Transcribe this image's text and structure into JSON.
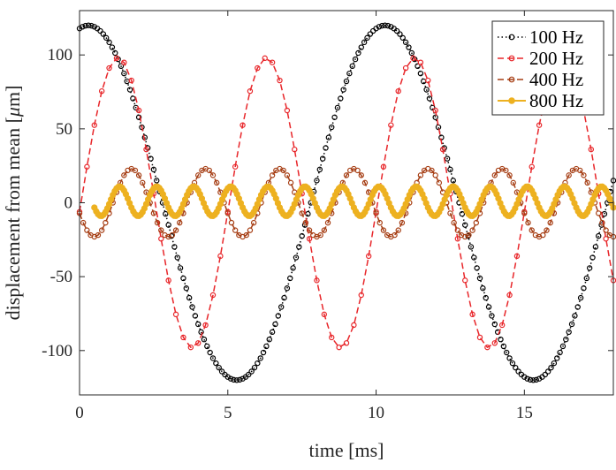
{
  "chart_data": {
    "type": "line",
    "title": "",
    "xlabel": "time [ms]",
    "ylabel_parts": [
      "displacement from mean [",
      "μ",
      "m]"
    ],
    "xlim": [
      0,
      18
    ],
    "ylim": [
      -130,
      130
    ],
    "x_ticks": [
      0,
      5,
      10,
      15
    ],
    "y_ticks": [
      -100,
      -50,
      0,
      50,
      100
    ],
    "x_tick_labels": [
      "0",
      "5",
      "10",
      "15"
    ],
    "y_tick_labels": [
      "-100",
      "-50",
      "0",
      "50",
      "100"
    ],
    "legend_position": "top-right",
    "grid": false,
    "series": [
      {
        "name": "100 Hz",
        "color": "#000000",
        "line_style": "dotted",
        "marker": "open-circle",
        "amplitude": 120,
        "frequency_hz": 100,
        "peak_time_ms": 0.3,
        "x_start": 0,
        "x_end": 18,
        "sample_step_ms": 0.1
      },
      {
        "name": "200 Hz",
        "color": "#e8262a",
        "line_style": "dashed",
        "marker": "open-circle",
        "amplitude": 98,
        "frequency_hz": 200,
        "peak_time_ms": 1.3,
        "x_start": 0,
        "x_end": 18,
        "sample_step_ms": 0.25
      },
      {
        "name": "400 Hz",
        "color": "#a63e14",
        "line_style": "dashed",
        "marker": "open-circle",
        "amplitude": 23,
        "frequency_hz": 400,
        "peak_time_ms": 1.75,
        "x_start": 0,
        "x_end": 18,
        "sample_step_ms": 0.125
      },
      {
        "name": "800 Hz",
        "color": "#edb120",
        "line_style": "solid",
        "marker": "filled-circle",
        "amplitude": 10,
        "frequency_hz": 800,
        "offset": 1,
        "peak_time_ms": 1.35,
        "x_start": 0.5,
        "x_end": 18,
        "sample_step_ms": 0.0625
      }
    ]
  }
}
